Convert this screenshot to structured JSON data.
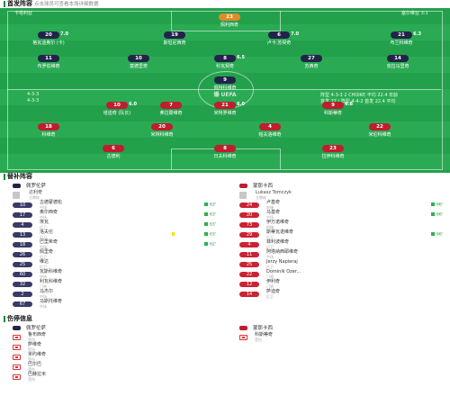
{
  "header": {
    "title": "首发阵容",
    "subtitle": "点击球员可查看本场详细数据"
  },
  "pitch": {
    "home_tag": "卡塔利亚",
    "away_tag": "塞尔维亚 3:1",
    "center_text": "爆 UEFA",
    "home_formation": [
      "4-3-3",
      "4-3-3"
    ],
    "away_formation": [
      "4-2-3-1",
      "4-2-3-1"
    ],
    "away_formation_right": [
      "阵型 4-3-3 2 CHOIKE 平均 22.4 年龄",
      "首发 27 / 阵型 4-4-2 首发 22.4 平均"
    ],
    "home_players": [
      {
        "num": "23",
        "name": "佩利西奇"
      },
      {
        "num": "20",
        "name": "格瓦迪奥尔 (卡)",
        "rating": "7.0"
      },
      {
        "num": "19",
        "name": "斯坦尼西奇"
      },
      {
        "num": "6",
        "name": "卢卡·苏契奇",
        "rating": "7.0"
      },
      {
        "num": "21",
        "name": "布兰科维奇",
        "rating": "6.3"
      },
      {
        "num": "11",
        "name": "布罗佐维奇"
      },
      {
        "num": "10",
        "name": "莫德里奇"
      },
      {
        "num": "8",
        "name": "科瓦契奇",
        "rating": "6.5"
      },
      {
        "num": "27",
        "name": "苏西奇"
      },
      {
        "num": "14",
        "name": "克拉马里奇"
      },
      {
        "num": "9",
        "name": "佩特科维奇"
      }
    ],
    "away_players": [
      {
        "num": "10",
        "name": "塔迪奇 (队长)",
        "rating": "6.0"
      },
      {
        "num": "7",
        "name": "弗拉霍维奇"
      },
      {
        "num": "21",
        "name": "米特罗维奇",
        "rating": "6.0"
      },
      {
        "num": "9",
        "name": "科斯蒂奇",
        "rating": "6.8"
      },
      {
        "num": "18",
        "name": "科维奇"
      },
      {
        "num": "20",
        "name": "米林科维奇"
      },
      {
        "num": "4",
        "name": "帕夫洛维奇"
      },
      {
        "num": "22",
        "name": "米伦科维奇"
      },
      {
        "num": "6",
        "name": "古德利"
      },
      {
        "num": "8",
        "name": "日夫科维奇",
        "rating": "7.1"
      },
      {
        "num": "23",
        "name": "拉伊科维奇"
      }
    ]
  },
  "subs": {
    "title": "替补阵容",
    "home_team": "佩罗伦萨",
    "away_team": "蒙那卡西",
    "home_coach": {
      "name": "达利奇",
      "role": "主教练"
    },
    "away_coach": {
      "name": "Lukasz Tomczyk",
      "role": "主教练"
    },
    "home": [
      {
        "num": "10",
        "name": "古德蒙德松",
        "pos": "中场",
        "in": "63'"
      },
      {
        "num": "17",
        "name": "奥尔西奇",
        "pos": "中场",
        "in": "63'"
      },
      {
        "num": "4",
        "name": "埃瓦",
        "pos": "后卫",
        "in": "63'"
      },
      {
        "num": "13",
        "name": "洛夫伦",
        "pos": "后卫",
        "in": "63'",
        "card": true
      },
      {
        "num": "18",
        "name": "巴里希奇",
        "pos": "中场",
        "in": "62'"
      },
      {
        "num": "26",
        "name": "佩里奇",
        "pos": "后卫"
      },
      {
        "num": "25",
        "name": "维达",
        "pos": "后卫"
      },
      {
        "num": "60",
        "name": "瓦斯科维奇",
        "pos": "中场"
      },
      {
        "num": "32",
        "name": "利瓦科维奇",
        "pos": "门将"
      },
      {
        "num": "2",
        "name": "马杰尔",
        "pos": "中场"
      },
      {
        "num": "67",
        "name": "马斯托维奇",
        "pos": "中场"
      }
    ],
    "away": [
      {
        "num": "24",
        "name": "卢基奇",
        "pos": "前锋",
        "in": "66'"
      },
      {
        "num": "20",
        "name": "马基奇",
        "pos": "中场",
        "in": "66'"
      },
      {
        "num": "73",
        "name": "伊万诺维奇",
        "pos": "前锋"
      },
      {
        "num": "29",
        "name": "斯蒂瓦诺维奇",
        "pos": "后卫",
        "in": "66'"
      },
      {
        "num": "4",
        "name": "菲利波维奇",
        "pos": "后卫"
      },
      {
        "num": "11",
        "name": "阿塔纳西耶维奇",
        "pos": "中场"
      },
      {
        "num": "25",
        "name": "Jerzy Napieraj",
        "pos": "后卫"
      },
      {
        "num": "22",
        "name": "Dominik Ozer...",
        "pos": "门将"
      },
      {
        "num": "12",
        "name": "伊利奇",
        "pos": "门将"
      },
      {
        "num": "14",
        "name": "萨迪奇",
        "pos": "后卫"
      }
    ]
  },
  "injury": {
    "title": "伤停信息",
    "home_team": "佩罗伦萨",
    "away_team": "蒙那卡西",
    "home": [
      {
        "name": "鲁布西奇",
        "reason": "受伤"
      },
      {
        "name": "萨维奇",
        "reason": "受伤"
      },
      {
        "name": "米约维奇",
        "reason": "受伤"
      },
      {
        "name": "巴尔巴",
        "reason": "受伤"
      },
      {
        "name": "巴赫拉米",
        "reason": "受伤"
      }
    ],
    "away": [
      {
        "name": "科斯蒂奇",
        "reason": "受伤"
      }
    ]
  },
  "colors": {
    "home": "#23234a",
    "away": "#c01d2e",
    "gk": "#e08a2a",
    "pitch": "#23a04b",
    "sub_in": "#2bb24c"
  }
}
